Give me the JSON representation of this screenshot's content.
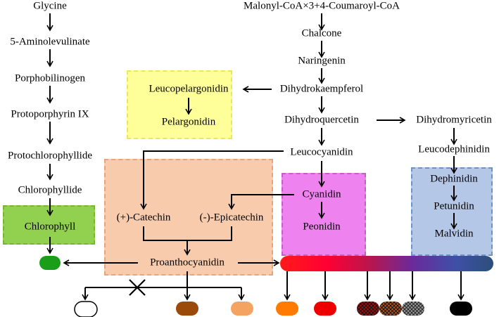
{
  "left_pathway": {
    "glycine": "Glycine",
    "aminolevulinate": "5-Aminolevulinate",
    "porphobilinogen": "Porphobilinogen",
    "protoporphyrin": "Protoporphyrin IX",
    "protochlorophyllide": "Protochlorophyllide",
    "chlorophyllide": "Chlorophyllide",
    "chlorophyll": "Chlorophyll"
  },
  "main_pathway": {
    "precursor": "Malonyl-CoA×3+4-Coumaroyl-CoA",
    "chalcone": "Chalcone",
    "naringenin": "Naringenin",
    "dihydrokaempferol": "Dihydrokaempferol",
    "dihydroquercetin": "Dihydroquercetin",
    "dihydromyricetin": "Dihydromyricetin",
    "leucocyanidin": "Leucocyanidin",
    "leucodephinidin": "Leucodephinidin"
  },
  "pelargonidin_branch": {
    "leucopelargonidin": "Leucopelargonidin",
    "pelargonidin": "Pelargonidin"
  },
  "proanthocyanidin_branch": {
    "catechin": "(+)-Catechin",
    "epicatechin": "(-)-Epicatechin",
    "proanthocyanidin": "Proanthocyanidin"
  },
  "cyanidin_branch": {
    "cyanidin": "Cyanidin",
    "peonidin": "Peonidin"
  },
  "delphinidin_branch": {
    "dephinidin": "Dephinidin",
    "petunidin": "Petunidin",
    "malvidin": "Malvidin"
  },
  "colors": {
    "chlorophyll_box": "#92d050",
    "leucopelargonidin_box": "#ffff99",
    "proanthocyanidin_box": "#f8cbad",
    "cyanidin_box": "#ee82ee",
    "delphinidin_box": "#b4c7e7",
    "swatch_green": "#1a9e1a",
    "swatch_brown": "#9c4a0a",
    "swatch_light_orange": "#f4a460",
    "swatch_orange": "#ff7a00",
    "swatch_red": "#ee0000",
    "swatch_black": "#000000"
  }
}
